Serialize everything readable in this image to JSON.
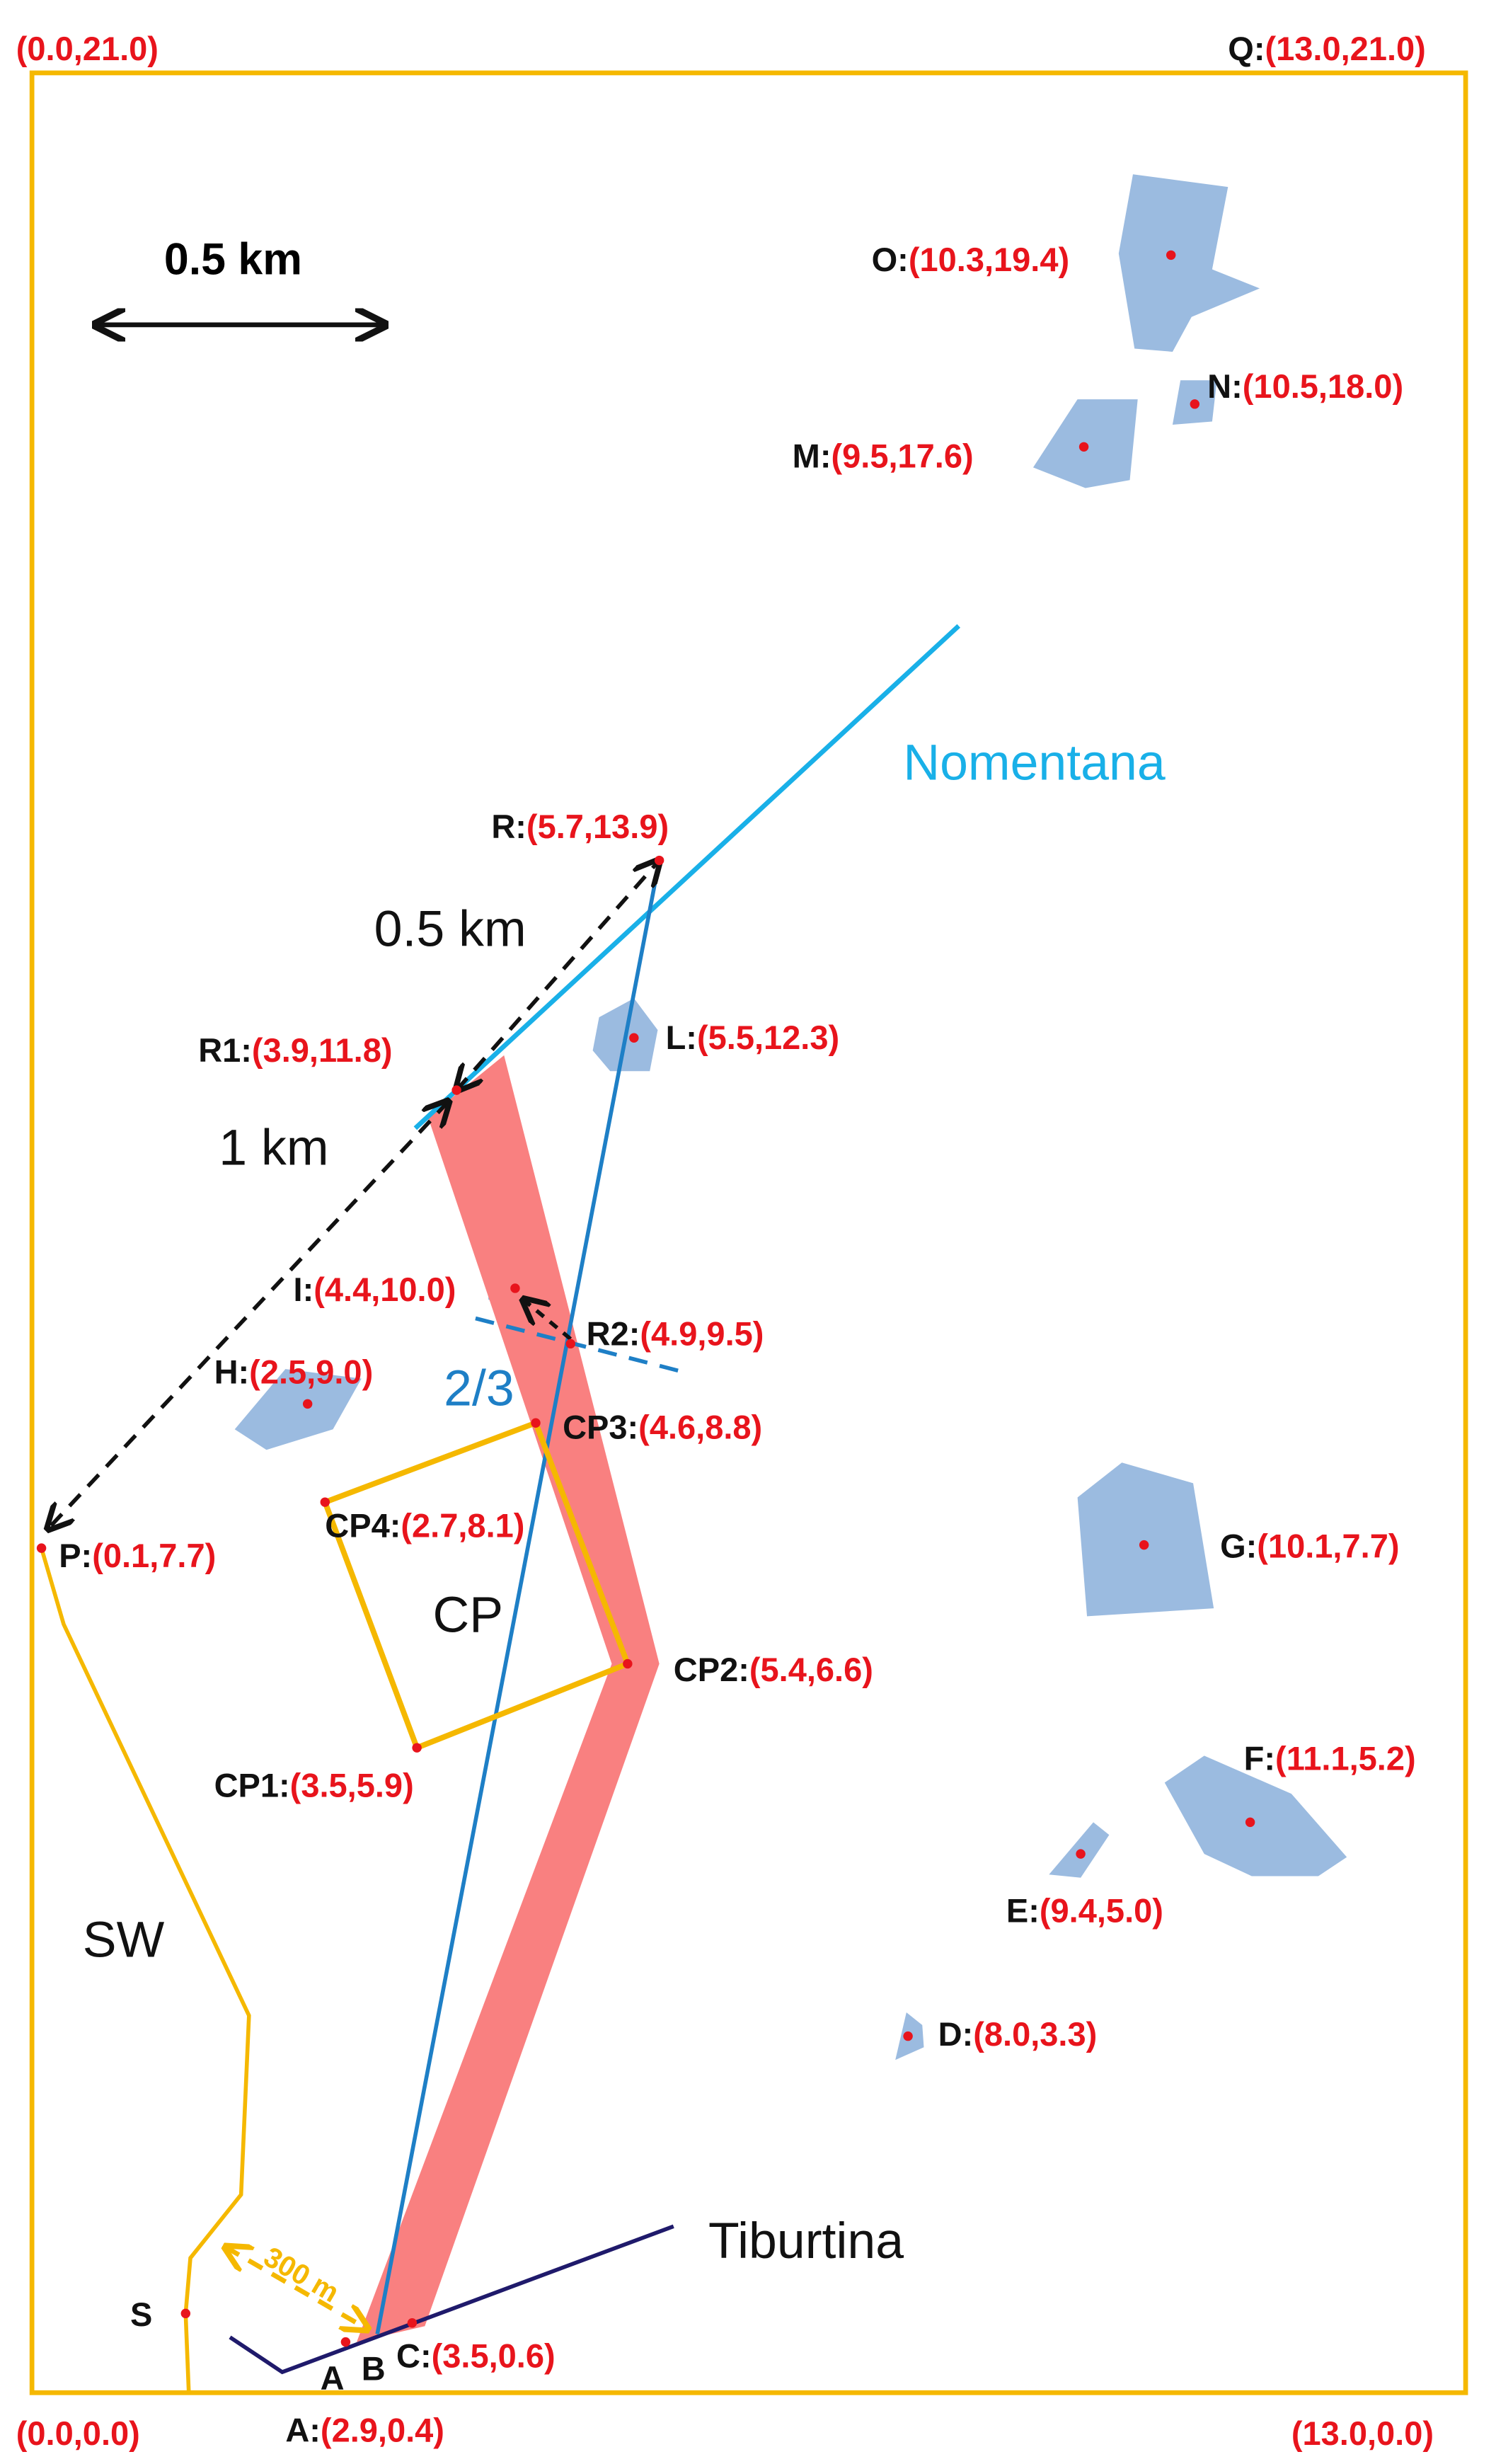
{
  "scale_label": "0.5 km",
  "corners": [
    "(0.0,21.0)",
    "(0.0,0.0)",
    "(13.0,0.0)"
  ],
  "points": [
    {
      "name": "Q:",
      "coord": "(13.0,21.0)"
    },
    {
      "name": "O:",
      "coord": "(10.3,19.4)"
    },
    {
      "name": "N:",
      "coord": "(10.5,18.0)"
    },
    {
      "name": "M:",
      "coord": "(9.5,17.6)"
    },
    {
      "name": "R:",
      "coord": "(5.7,13.9)"
    },
    {
      "name": "R1:",
      "coord": "(3.9,11.8)"
    },
    {
      "name": "L:",
      "coord": "(5.5,12.3)"
    },
    {
      "name": "I:",
      "coord": "(4.4,10.0)"
    },
    {
      "name": "R2:",
      "coord": "(4.9,9.5)"
    },
    {
      "name": "H:",
      "coord": "(2.5,9.0)"
    },
    {
      "name": "CP3:",
      "coord": "(4.6,8.8)"
    },
    {
      "name": "CP4:",
      "coord": "(2.7,8.1)"
    },
    {
      "name": "P:",
      "coord": "(0.1,7.7)"
    },
    {
      "name": "G:",
      "coord": "(10.1,7.7)"
    },
    {
      "name": "CP2:",
      "coord": "(5.4,6.6)"
    },
    {
      "name": "CP1:",
      "coord": "(3.5,5.9)"
    },
    {
      "name": "F:",
      "coord": "(11.1,5.2)"
    },
    {
      "name": "E:",
      "coord": "(9.4,5.0)"
    },
    {
      "name": "D:",
      "coord": "(8.0,3.3)"
    },
    {
      "name": "C:",
      "coord": "(3.5,0.6)"
    },
    {
      "name": "A:",
      "coord": "(2.9,0.4)"
    }
  ],
  "roads": {
    "nomentana": "Nomentana",
    "tiburtina": "Tiburtina"
  },
  "distances": {
    "r_r1": "0.5 km",
    "r1_p": "1 km",
    "ratio": "2/3",
    "walk": "300 m"
  },
  "area_labels": {
    "cp": "CP",
    "sw": "SW",
    "a": "A",
    "b": "B",
    "s": "S"
  }
}
